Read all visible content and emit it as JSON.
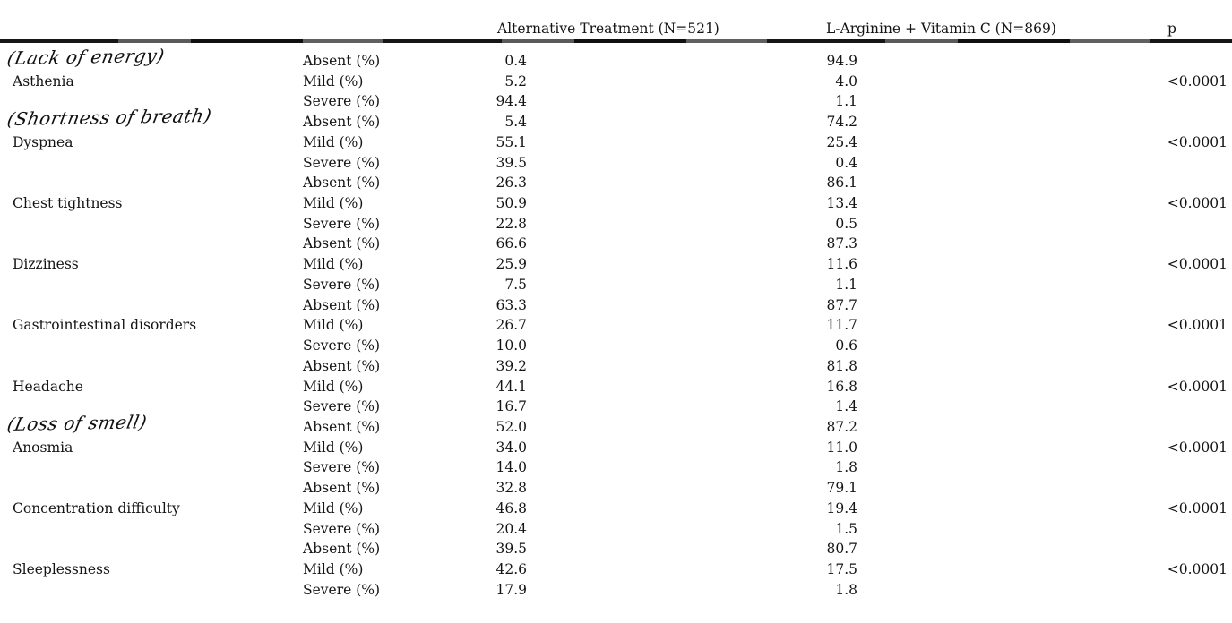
{
  "table": {
    "header": {
      "alt_label": "Alternative Treatment (N=521)",
      "larg_label": "L-Arginine + Vitamin C (N=869)",
      "p_label": "p"
    },
    "severity_labels": [
      "Absent (%)",
      "Mild (%)",
      "Severe (%)"
    ],
    "groups": [
      {
        "symptom": "Asthenia",
        "annotation": "(Lack of energy)",
        "alt": [
          "0.4",
          "5.2",
          "94.4"
        ],
        "larg": [
          "94.9",
          "4.0",
          "1.1"
        ],
        "p": "<0.0001"
      },
      {
        "symptom": "Dyspnea",
        "annotation": "(Shortness of breath)",
        "alt": [
          "5.4",
          "55.1",
          "39.5"
        ],
        "larg": [
          "74.2",
          "25.4",
          "0.4"
        ],
        "p": "<0.0001"
      },
      {
        "symptom": "Chest tightness",
        "annotation": null,
        "alt": [
          "26.3",
          "50.9",
          "22.8"
        ],
        "larg": [
          "86.1",
          "13.4",
          "0.5"
        ],
        "p": "<0.0001"
      },
      {
        "symptom": "Dizziness",
        "annotation": null,
        "alt": [
          "66.6",
          "25.9",
          "7.5"
        ],
        "larg": [
          "87.3",
          "11.6",
          "1.1"
        ],
        "p": "<0.0001"
      },
      {
        "symptom": "Gastrointestinal disorders",
        "annotation": null,
        "alt": [
          "63.3",
          "26.7",
          "10.0"
        ],
        "larg": [
          "87.7",
          "11.7",
          "0.6"
        ],
        "p": "<0.0001"
      },
      {
        "symptom": "Headache",
        "annotation": null,
        "alt": [
          "39.2",
          "44.1",
          "16.7"
        ],
        "larg": [
          "81.8",
          "16.8",
          "1.4"
        ],
        "p": "<0.0001"
      },
      {
        "symptom": "Anosmia",
        "annotation": "(Loss of smell)",
        "alt": [
          "52.0",
          "34.0",
          "14.0"
        ],
        "larg": [
          "87.2",
          "11.0",
          "1.8"
        ],
        "p": "<0.0001"
      },
      {
        "symptom": "Concentration difficulty",
        "annotation": null,
        "alt": [
          "32.8",
          "46.8",
          "20.4"
        ],
        "larg": [
          "79.1",
          "19.4",
          "1.5"
        ],
        "p": "<0.0001"
      },
      {
        "symptom": "Sleeplessness",
        "annotation": null,
        "alt": [
          "39.5",
          "42.6",
          "17.9"
        ],
        "larg": [
          "80.7",
          "17.5",
          "1.8"
        ],
        "p": "<0.0001"
      }
    ]
  }
}
